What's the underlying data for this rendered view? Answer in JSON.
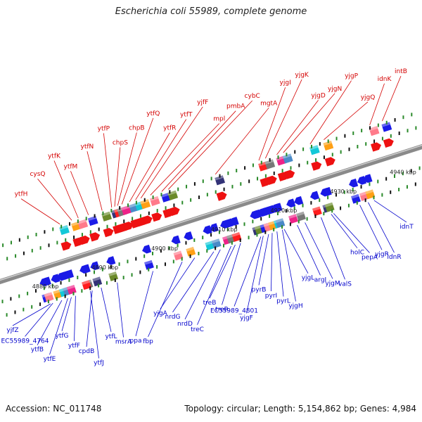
{
  "title": "Escherichia coli 55989, complete genome",
  "footer": {
    "accession": "Accession: NC_011748",
    "summary": "Topology: circular; Length: 5,154,862 bp; Genes: 4,984"
  },
  "colors": {
    "top_label": "#d40000",
    "bottom_label": "#0000cc",
    "backbone": "#8a8a8a",
    "forward_feature": "#ee1111",
    "reverse_feature": "#1a1ae6",
    "tick_dots": "#2a8a2a"
  },
  "scale": {
    "unit": "kbp",
    "ticks": [
      {
        "kbp": 4880,
        "label": "4880 kbp"
      },
      {
        "kbp": 4890,
        "label": "4890 kbp"
      },
      {
        "kbp": 4900,
        "label": "4900 kbp"
      },
      {
        "kbp": 4910,
        "label": "4910 kbp"
      },
      {
        "kbp": 4920,
        "label": "4920 kbp"
      },
      {
        "kbp": 4930,
        "label": "4930 kbp"
      },
      {
        "kbp": 4940,
        "label": "4940 kbp"
      }
    ]
  },
  "top_genes": [
    {
      "label": "ytfH",
      "kbp": 4885.5
    },
    {
      "label": "cysQ",
      "kbp": 4887.5
    },
    {
      "label": "ytfK",
      "kbp": 4888.6
    },
    {
      "label": "ytfM",
      "kbp": 4890.3
    },
    {
      "label": "ytfN",
      "kbp": 4892.6
    },
    {
      "label": "ytfP",
      "kbp": 4894.2
    },
    {
      "label": "chpS",
      "kbp": 4894.7
    },
    {
      "label": "chpB",
      "kbp": 4895.2
    },
    {
      "label": "ytfQ",
      "kbp": 4895.9
    },
    {
      "label": "ytfR",
      "kbp": 4897.2
    },
    {
      "label": "ytfT",
      "kbp": 4898.2
    },
    {
      "label": "yjfF",
      "kbp": 4899.1
    },
    {
      "label": "mpl",
      "kbp": 4900.7
    },
    {
      "label": "pmbA",
      "kbp": 4902.6
    },
    {
      "label": "cybC",
      "kbp": 4903.7
    },
    {
      "label": "mgtA",
      "kbp": 4911.6
    },
    {
      "label": "yjgI",
      "kbp": 4918.9
    },
    {
      "label": "yjgK",
      "kbp": 4920.0
    },
    {
      "label": "yjgD",
      "kbp": 4921.9
    },
    {
      "label": "yjgN",
      "kbp": 4923.0
    },
    {
      "label": "yjgP",
      "kbp": 4927.5
    },
    {
      "label": "yjgQ",
      "kbp": 4929.8
    },
    {
      "label": "idnK",
      "kbp": 4937.5
    },
    {
      "label": "intB",
      "kbp": 4939.6
    }
  ],
  "bottom_genes": [
    {
      "label": "yjfZ",
      "kbp": 4880.2
    },
    {
      "label": "EC55989_4764",
      "kbp": 4880.6
    },
    {
      "label": "ytfB",
      "kbp": 4882.1
    },
    {
      "label": "ytfE",
      "kbp": 4883.1
    },
    {
      "label": "ytfG",
      "kbp": 4883.7
    },
    {
      "label": "ytfF",
      "kbp": 4884.4
    },
    {
      "label": "cpdB",
      "kbp": 4887.2
    },
    {
      "label": "ytfJ",
      "kbp": 4886.9
    },
    {
      "label": "ytfL",
      "kbp": 4888.7
    },
    {
      "label": "msrA",
      "kbp": 4891.4
    },
    {
      "label": "ppa",
      "kbp": 4897.4
    },
    {
      "label": "fbp",
      "kbp": 4902.3
    },
    {
      "label": "yjgA",
      "kbp": 4904.4
    },
    {
      "label": "nrdG",
      "kbp": 4907.6
    },
    {
      "label": "nrdD",
      "kbp": 4908.7
    },
    {
      "label": "treC",
      "kbp": 4910.5
    },
    {
      "label": "treB",
      "kbp": 4911.2
    },
    {
      "label": "treR",
      "kbp": 4912.1
    },
    {
      "label": "EC55989_4801",
      "kbp": 4915.5
    },
    {
      "label": "yjgF",
      "kbp": 4915.9
    },
    {
      "label": "pyrB",
      "kbp": 4916.8
    },
    {
      "label": "pyrI",
      "kbp": 4917.4
    },
    {
      "label": "pyrL",
      "kbp": 4918.2
    },
    {
      "label": "yjgH",
      "kbp": 4919.1
    },
    {
      "label": "yjgL",
      "kbp": 4919.4
    },
    {
      "label": "argI",
      "kbp": 4921.6
    },
    {
      "label": "yjgM",
      "kbp": 4922.9
    },
    {
      "label": "valS",
      "kbp": 4925.6
    },
    {
      "label": "holC",
      "kbp": 4927.3
    },
    {
      "label": "pepA",
      "kbp": 4927.7
    },
    {
      "label": "yjgR",
      "kbp": 4932.1
    },
    {
      "label": "idnR",
      "kbp": 4933.5
    },
    {
      "label": "idnT",
      "kbp": 4934.5
    }
  ]
}
